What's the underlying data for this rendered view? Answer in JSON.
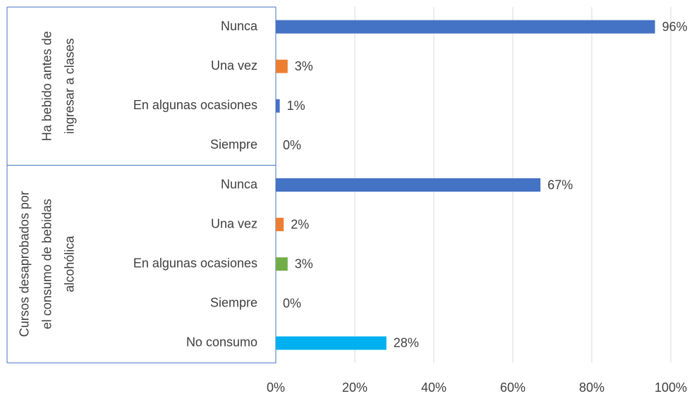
{
  "chart_data": {
    "type": "bar",
    "orientation": "horizontal",
    "groups": [
      {
        "label_lines": [
          "Ha bebido antes de",
          "ingresar a clases"
        ],
        "categories": [
          "Nunca",
          "Una vez",
          "En algunas ocasiones",
          "Siempre"
        ],
        "values": [
          96,
          3,
          1,
          0
        ],
        "value_labels": [
          "96%",
          "3%",
          "1%",
          "0%"
        ],
        "colors": [
          "#4472c4",
          "#ed7d31",
          "#4472c4",
          "#4472c4"
        ]
      },
      {
        "label_lines": [
          "Cursos desaprobados por",
          "el consumo de bebidas",
          "alcohólica"
        ],
        "categories": [
          "Nunca",
          "Una vez",
          "En algunas ocasiones",
          "Siempre",
          "No consumo"
        ],
        "values": [
          67,
          2,
          3,
          0,
          28
        ],
        "value_labels": [
          "67%",
          "2%",
          "3%",
          "0%",
          "28%"
        ],
        "colors": [
          "#4472c4",
          "#ed7d31",
          "#70ad47",
          "#4472c4",
          "#00b0f0"
        ]
      }
    ],
    "xlim": [
      0,
      100
    ],
    "xticks": [
      {
        "value": 0,
        "label": "0%"
      },
      {
        "value": 20,
        "label": "20%"
      },
      {
        "value": 40,
        "label": "40%"
      },
      {
        "value": 60,
        "label": "60%"
      },
      {
        "value": 80,
        "label": "80%"
      },
      {
        "value": 100,
        "label": "100%"
      }
    ],
    "grid": true
  }
}
